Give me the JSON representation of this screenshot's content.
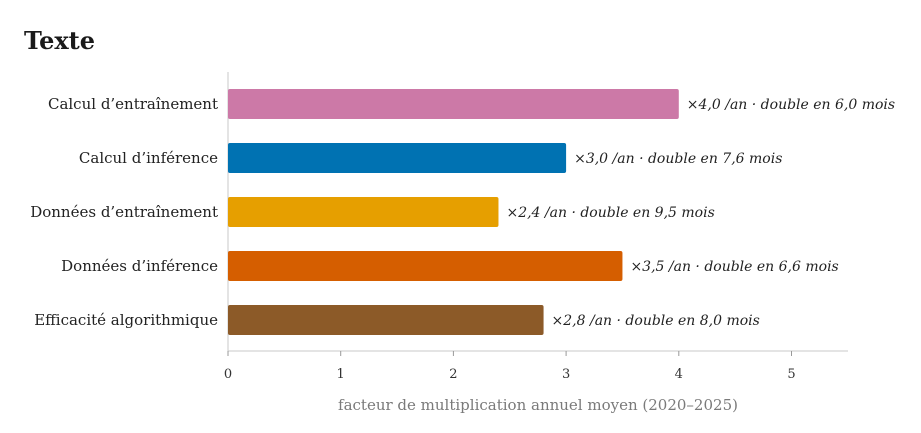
{
  "chart_data": {
    "type": "bar",
    "orientation": "horizontal",
    "title": "Texte",
    "xlabel": "facteur de multiplication annuel moyen (2020–2025)",
    "ylabel": "",
    "xlim": [
      0,
      5.5
    ],
    "xticks": [
      0,
      1,
      2,
      3,
      4,
      5
    ],
    "xtick_labels": [
      "0",
      "1",
      "2",
      "3",
      "4",
      "5"
    ],
    "grid": false,
    "categories": [
      "Calcul d’entraînement",
      "Calcul d’inférence",
      "Données d’entraînement",
      "Données d’inférence",
      "Efficacité algorithmique"
    ],
    "values": [
      4.0,
      3.0,
      2.4,
      3.5,
      2.8
    ],
    "data_labels": [
      "×4,0 /an · double en 6,0 mois",
      "×3,0 /an · double en 7,6 mois",
      "×2,4 /an · double en 9,5 mois",
      "×3,5 /an · double en 6,6 mois",
      "×2,8 /an · double en 8,0 mois"
    ],
    "colors": [
      "#cc79a7",
      "#0072b2",
      "#e69f00",
      "#d55e00",
      "#8c5a28"
    ]
  }
}
